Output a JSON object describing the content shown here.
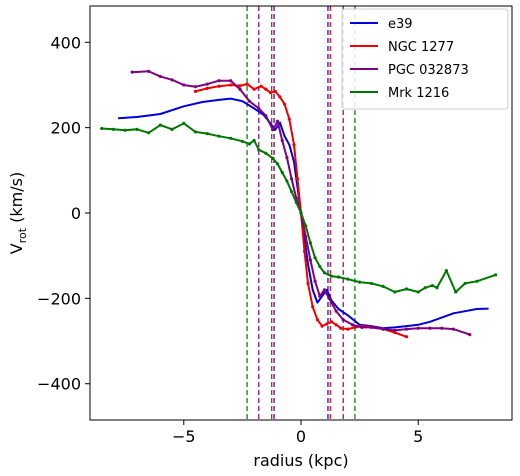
{
  "chart_data": {
    "type": "line",
    "xlabel": "radius (kpc)",
    "ylabel": "V",
    "ylabel_sub": "rot",
    "ylabel_unit": " (km/s)",
    "xlim": [
      -9.0,
      9.0
    ],
    "ylim": [
      -485,
      485
    ],
    "xticks": [
      -5,
      0,
      5
    ],
    "yticks": [
      -400,
      -200,
      0,
      200,
      400
    ],
    "xtick_labels": [
      "−5",
      "0",
      "5"
    ],
    "ytick_labels": [
      "−400",
      "−200",
      "0",
      "200",
      "400"
    ],
    "grid": false,
    "legend_position": "top-right",
    "series": [
      {
        "name": "e39",
        "color": "#0000dd",
        "marker": false,
        "x": [
          -7.8,
          -7.0,
          -6.0,
          -5.0,
          -4.2,
          -3.5,
          -3.0,
          -2.5,
          -2.0,
          -1.6,
          -1.3,
          -1.1,
          -0.9,
          -0.7,
          -0.5,
          -0.3,
          -0.15,
          0,
          0.15,
          0.3,
          0.5,
          0.7,
          0.9,
          1.1,
          1.3,
          1.6,
          2.0,
          2.5,
          3.0,
          3.5,
          4.0,
          4.5,
          5.0,
          5.5,
          6.0,
          6.5,
          7.0,
          7.5,
          8.0
        ],
        "y": [
          222,
          225,
          232,
          250,
          260,
          265,
          268,
          262,
          245,
          230,
          210,
          195,
          212,
          180,
          160,
          120,
          60,
          0,
          -60,
          -120,
          -180,
          -210,
          -195,
          -180,
          -205,
          -225,
          -240,
          -262,
          -265,
          -270,
          -268,
          -265,
          -262,
          -255,
          -245,
          -235,
          -230,
          -225,
          -224
        ]
      },
      {
        "name": "NGC 1277",
        "color": "#ee0000",
        "marker": true,
        "x": [
          -4.5,
          -4.0,
          -3.5,
          -3.0,
          -2.6,
          -2.3,
          -2.0,
          -1.7,
          -1.5,
          -1.3,
          -1.1,
          -0.9,
          -0.7,
          -0.5,
          -0.3,
          -0.15,
          0,
          0.15,
          0.3,
          0.5,
          0.7,
          0.9,
          1.1,
          1.3,
          1.5,
          1.7,
          2.0,
          2.3,
          2.6,
          3.0,
          3.5,
          4.0,
          4.5
        ],
        "y": [
          285,
          292,
          297,
          300,
          298,
          302,
          290,
          297,
          290,
          282,
          285,
          272,
          255,
          220,
          160,
          80,
          0,
          -90,
          -165,
          -220,
          -250,
          -265,
          -260,
          -255,
          -262,
          -270,
          -272,
          -268,
          -265,
          -267,
          -272,
          -280,
          -290
        ]
      },
      {
        "name": "PGC 032873",
        "color": "#7f0080",
        "marker": true,
        "x": [
          -7.2,
          -6.5,
          -6.0,
          -5.5,
          -5.0,
          -4.5,
          -4.0,
          -3.5,
          -3.0,
          -2.6,
          -2.2,
          -1.8,
          -1.5,
          -1.2,
          -1.0,
          -0.8,
          -0.6,
          -0.4,
          -0.2,
          0,
          0.2,
          0.4,
          0.6,
          0.8,
          1.0,
          1.2,
          1.5,
          1.8,
          2.2,
          2.6,
          3.0,
          3.5,
          4.0,
          4.5,
          5.0,
          5.5,
          6.0,
          6.5,
          7.2
        ],
        "y": [
          330,
          332,
          320,
          312,
          300,
          296,
          302,
          310,
          310,
          290,
          262,
          245,
          228,
          195,
          215,
          170,
          130,
          80,
          35,
          0,
          -55,
          -110,
          -160,
          -195,
          -180,
          -200,
          -230,
          -250,
          -262,
          -268,
          -268,
          -272,
          -275,
          -272,
          -270,
          -270,
          -270,
          -272,
          -285
        ]
      },
      {
        "name": "Mrk 1216",
        "color": "#007700",
        "marker": true,
        "x": [
          -8.5,
          -8.0,
          -7.5,
          -7.0,
          -6.5,
          -6.0,
          -5.5,
          -5.0,
          -4.5,
          -4.0,
          -3.5,
          -3.0,
          -2.5,
          -2.2,
          -2.0,
          -1.8,
          -1.5,
          -1.2,
          -1.0,
          -0.8,
          -0.6,
          -0.4,
          -0.2,
          0,
          0.2,
          0.4,
          0.6,
          0.8,
          1.0,
          1.3,
          1.6,
          2.0,
          2.5,
          3.0,
          3.5,
          4.0,
          4.5,
          5.0,
          5.3,
          5.6,
          5.8,
          6.2,
          6.6,
          7.0,
          7.5,
          8.3
        ],
        "y": [
          198,
          196,
          194,
          196,
          188,
          206,
          196,
          210,
          190,
          186,
          180,
          175,
          168,
          162,
          170,
          148,
          140,
          128,
          115,
          95,
          75,
          50,
          25,
          0,
          -30,
          -70,
          -105,
          -125,
          -140,
          -148,
          -150,
          -155,
          -162,
          -165,
          -172,
          -185,
          -178,
          -185,
          -175,
          -170,
          -175,
          -135,
          -185,
          -165,
          -160,
          -145
        ]
      }
    ],
    "vlines": [
      {
        "x": -2.3,
        "color": "#007700"
      },
      {
        "x": -1.8,
        "color": "#7f0080"
      },
      {
        "x": -1.25,
        "color": "#ee0000"
      },
      {
        "x": -1.15,
        "color": "#0000dd"
      },
      {
        "x": 1.15,
        "color": "#0000dd"
      },
      {
        "x": 1.25,
        "color": "#ee0000"
      },
      {
        "x": 1.8,
        "color": "#7f0080"
      },
      {
        "x": 2.3,
        "color": "#007700"
      }
    ]
  }
}
